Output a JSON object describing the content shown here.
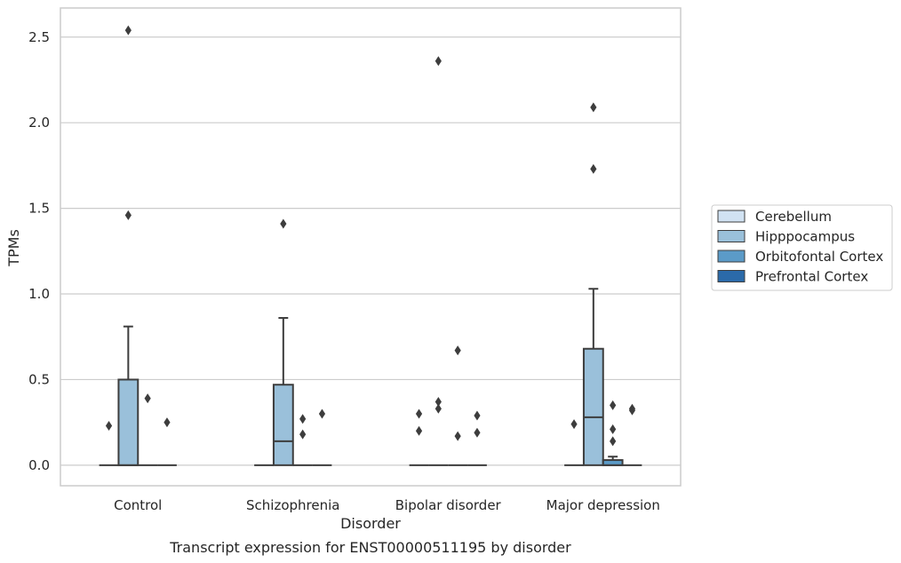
{
  "chart_data": {
    "type": "box",
    "caption": "Transcript expression for ENST00000511195 by disorder",
    "xlabel": "Disorder",
    "ylabel": "TPMs",
    "ylim": [
      -0.12,
      2.67
    ],
    "yticks": [
      "0.0",
      "0.5",
      "1.0",
      "1.5",
      "2.0",
      "2.5"
    ],
    "ytick_values": [
      0,
      0.5,
      1.0,
      1.5,
      2.0,
      2.5
    ],
    "grid": "horizontal",
    "legend_position": "right",
    "categories": [
      "Control",
      "Schizophrenia",
      "Bipolar disorder",
      "Major depression"
    ],
    "series": [
      {
        "name": "Cerebellum",
        "color": "#d1e2f2",
        "boxes": [
          {
            "q1": 0,
            "median": 0,
            "q3": 0,
            "whisker_low": 0,
            "whisker_high": 0,
            "outliers": [
              0.23
            ]
          },
          {
            "q1": 0,
            "median": 0,
            "q3": 0,
            "whisker_low": 0,
            "whisker_high": 0,
            "outliers": []
          },
          {
            "q1": 0,
            "median": 0,
            "q3": 0,
            "whisker_low": 0,
            "whisker_high": 0,
            "outliers": [
              0.3,
              0.2
            ]
          },
          {
            "q1": 0,
            "median": 0,
            "q3": 0,
            "whisker_low": 0,
            "whisker_high": 0,
            "outliers": [
              0.24
            ]
          }
        ]
      },
      {
        "name": "Hipppocampus",
        "color": "#9ac0da",
        "boxes": [
          {
            "q1": 0,
            "median": 0,
            "q3": 0.5,
            "whisker_low": 0,
            "whisker_high": 0.81,
            "outliers": [
              2.54,
              1.46
            ]
          },
          {
            "q1": 0,
            "median": 0.14,
            "q3": 0.47,
            "whisker_low": 0,
            "whisker_high": 0.86,
            "outliers": [
              1.41
            ]
          },
          {
            "q1": 0,
            "median": 0,
            "q3": 0,
            "whisker_low": 0,
            "whisker_high": 0,
            "outliers": [
              2.36,
              0.37,
              0.33
            ]
          },
          {
            "q1": 0,
            "median": 0.28,
            "q3": 0.68,
            "whisker_low": 0,
            "whisker_high": 1.03,
            "outliers": [
              2.09,
              1.73
            ]
          }
        ]
      },
      {
        "name": "Orbitofontal Cortex",
        "color": "#5b9bc8",
        "boxes": [
          {
            "q1": 0,
            "median": 0,
            "q3": 0,
            "whisker_low": 0,
            "whisker_high": 0,
            "outliers": [
              0.39
            ]
          },
          {
            "q1": 0,
            "median": 0,
            "q3": 0,
            "whisker_low": 0,
            "whisker_high": 0,
            "outliers": [
              0.27,
              0.18
            ]
          },
          {
            "q1": 0,
            "median": 0,
            "q3": 0,
            "whisker_low": 0,
            "whisker_high": 0,
            "outliers": [
              0.67,
              0.17
            ]
          },
          {
            "q1": 0,
            "median": 0,
            "q3": 0.03,
            "whisker_low": 0,
            "whisker_high": 0.05,
            "outliers": [
              0.35,
              0.21,
              0.14
            ]
          }
        ]
      },
      {
        "name": "Prefrontal Cortex",
        "color": "#2b6aa9",
        "boxes": [
          {
            "q1": 0,
            "median": 0,
            "q3": 0,
            "whisker_low": 0,
            "whisker_high": 0,
            "outliers": [
              0.25
            ]
          },
          {
            "q1": 0,
            "median": 0,
            "q3": 0,
            "whisker_low": 0,
            "whisker_high": 0,
            "outliers": [
              0.3
            ]
          },
          {
            "q1": 0,
            "median": 0,
            "q3": 0,
            "whisker_low": 0,
            "whisker_high": 0,
            "outliers": [
              0.29,
              0.19
            ]
          },
          {
            "q1": 0,
            "median": 0,
            "q3": 0,
            "whisker_low": 0,
            "whisker_high": 0,
            "outliers": [
              0.33,
              0.32
            ]
          }
        ]
      }
    ]
  }
}
